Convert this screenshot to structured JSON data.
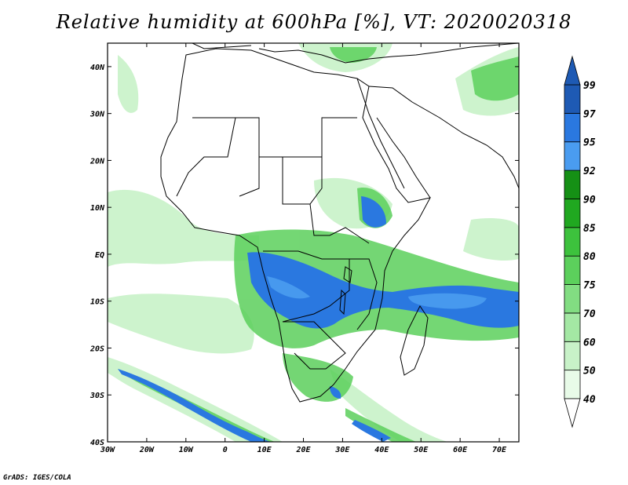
{
  "title": "Relative humidity at 600hPa [%], VT: 2020020318",
  "credit": "GrADS: IGES/COLA",
  "map": {
    "lon_range": [
      -30,
      75
    ],
    "lat_range": [
      -40,
      45
    ],
    "lon_ticks": [
      {
        "value": -30,
        "label": "30W"
      },
      {
        "value": -20,
        "label": "20W"
      },
      {
        "value": -10,
        "label": "10W"
      },
      {
        "value": 0,
        "label": "0"
      },
      {
        "value": 10,
        "label": "10E"
      },
      {
        "value": 20,
        "label": "20E"
      },
      {
        "value": 30,
        "label": "30E"
      },
      {
        "value": 40,
        "label": "40E"
      },
      {
        "value": 50,
        "label": "50E"
      },
      {
        "value": 60,
        "label": "60E"
      },
      {
        "value": 70,
        "label": "70E"
      }
    ],
    "lat_ticks": [
      {
        "value": 40,
        "label": "40N"
      },
      {
        "value": 30,
        "label": "30N"
      },
      {
        "value": 20,
        "label": "20N"
      },
      {
        "value": 10,
        "label": "10N"
      },
      {
        "value": 0,
        "label": "EQ"
      },
      {
        "value": -10,
        "label": "10S"
      },
      {
        "value": -20,
        "label": "20S"
      },
      {
        "value": -30,
        "label": "30S"
      },
      {
        "value": -40,
        "label": "40S"
      }
    ]
  },
  "colorbar": {
    "levels": [
      "40",
      "50",
      "60",
      "70",
      "75",
      "80",
      "85",
      "90",
      "92",
      "95",
      "97",
      "99"
    ],
    "colors": [
      "#ffffff",
      "#e8fbe8",
      "#c8f2c8",
      "#a4e8a4",
      "#82dd82",
      "#5cd05c",
      "#3dc23d",
      "#20a820",
      "#159015",
      "#4a9cf0",
      "#2a78e0",
      "#1e5ab4"
    ]
  },
  "colors": {
    "land_outline": "#000000",
    "ocean_background": "#ffffff",
    "humid_core": "#2a78e0",
    "humid_edge": "#5cd05c",
    "humid_light": "#c8f2c8"
  }
}
